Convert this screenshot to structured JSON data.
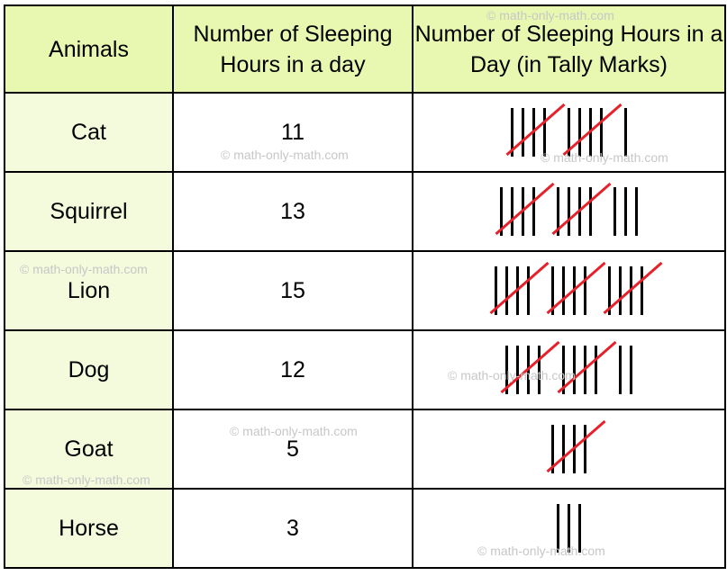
{
  "watermark": "© math-only-math.com",
  "headers": {
    "animals": "Animals",
    "hours": "Number of Sleeping Hours in a day",
    "tally": "Number of Sleeping Hours in a Day (in Tally Marks)"
  },
  "rows": [
    {
      "animal": "Cat",
      "hours": "11",
      "count": 11
    },
    {
      "animal": "Squirrel",
      "hours": "13",
      "count": 13
    },
    {
      "animal": "Lion",
      "hours": "15",
      "count": 15
    },
    {
      "animal": "Dog",
      "hours": "12",
      "count": 12
    },
    {
      "animal": "Goat",
      "hours": "5",
      "count": 5
    },
    {
      "animal": "Horse",
      "hours": "3",
      "count": 3
    }
  ],
  "colors": {
    "header_bg": "#e9f8b0",
    "animal_bg": "#f4fbdc",
    "tally_stroke": "#000000",
    "tally_cross": "#e8202a"
  }
}
